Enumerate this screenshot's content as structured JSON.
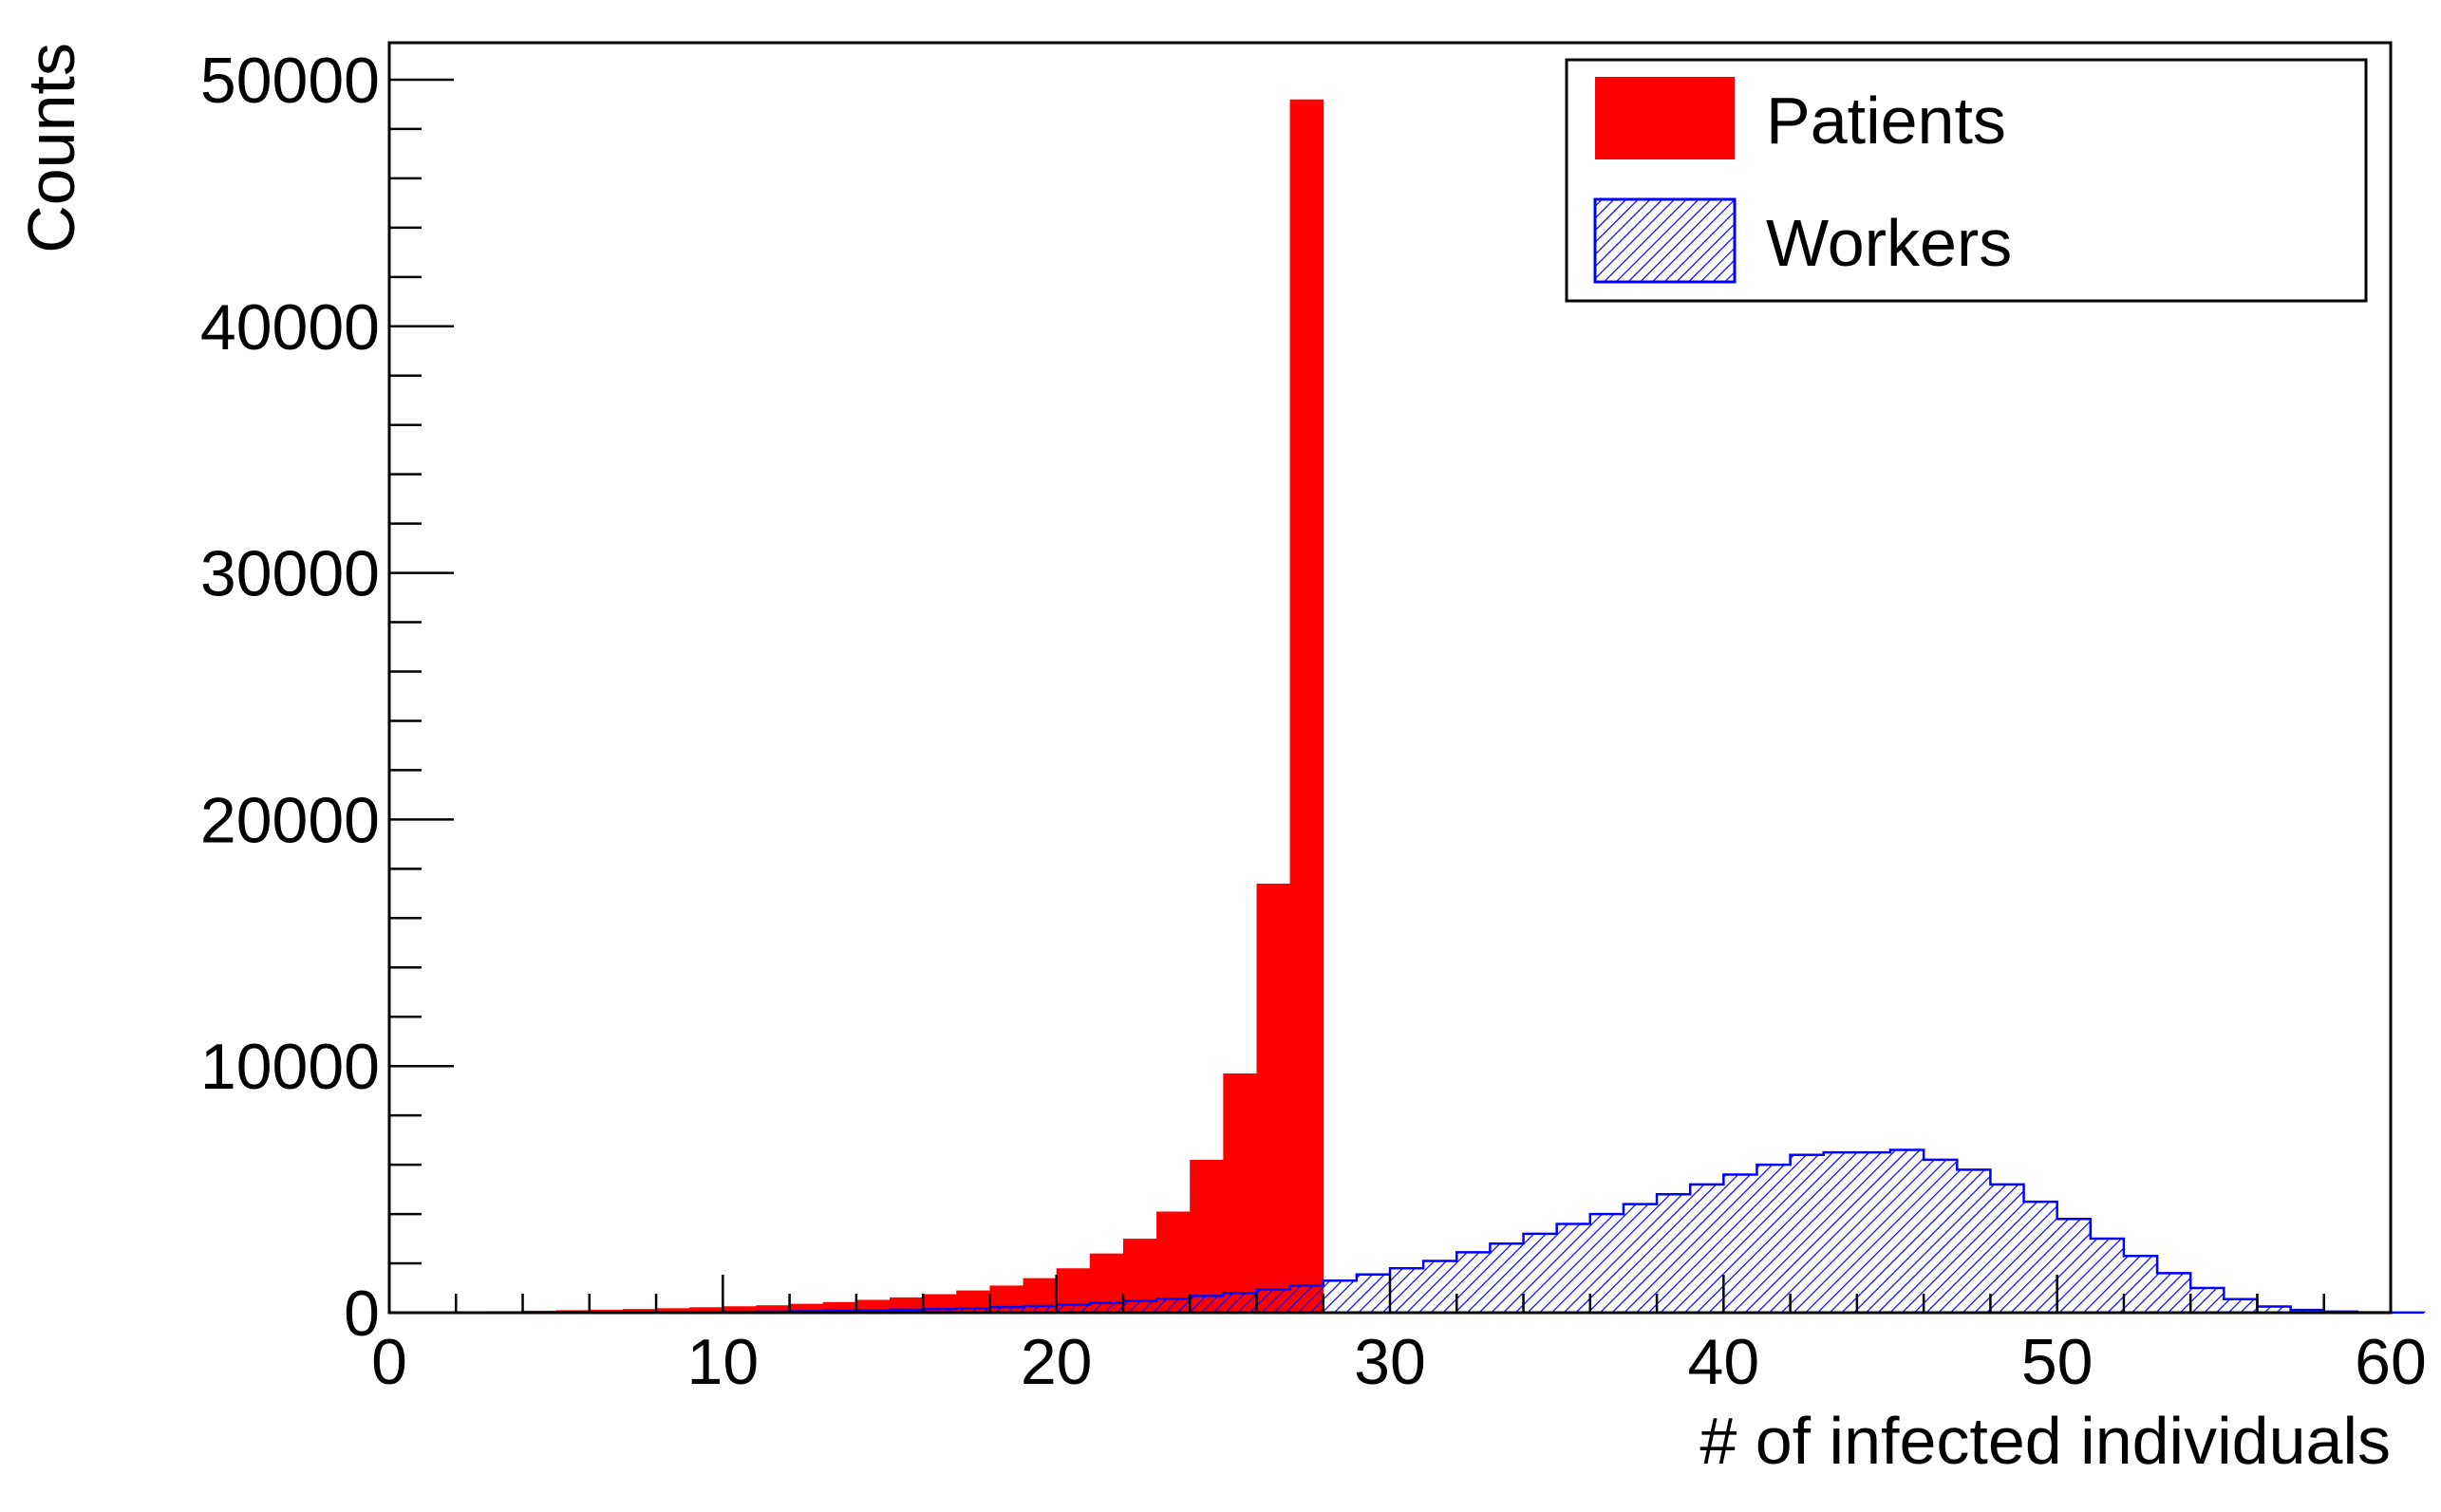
{
  "chart_data": {
    "type": "bar",
    "title": "",
    "xlabel": "# of infected individuals",
    "ylabel": "Counts",
    "xlim": [
      0,
      60
    ],
    "ylim": [
      0,
      51500
    ],
    "x_ticks": [
      "0",
      "10",
      "20",
      "30",
      "40",
      "50",
      "60"
    ],
    "y_ticks": [
      "0",
      "10000",
      "20000",
      "30000",
      "40000",
      "50000"
    ],
    "bin_width": 1,
    "legend_position": "top-right",
    "series": [
      {
        "name": "Patients",
        "style": "filled",
        "color": "#ff0000",
        "bin_start": 1,
        "values": [
          30,
          40,
          60,
          80,
          100,
          120,
          150,
          180,
          220,
          260,
          300,
          360,
          430,
          520,
          620,
          750,
          900,
          1100,
          1400,
          1800,
          2400,
          3000,
          4100,
          6200,
          9700,
          17400,
          49200
        ]
      },
      {
        "name": "Workers",
        "style": "hatched",
        "color": "#0000ff",
        "bin_start": 1,
        "values": [
          5,
          5,
          5,
          5,
          10,
          10,
          15,
          20,
          25,
          35,
          45,
          60,
          75,
          95,
          120,
          150,
          185,
          225,
          270,
          330,
          400,
          480,
          570,
          680,
          800,
          950,
          1100,
          1300,
          1550,
          1800,
          2100,
          2450,
          2800,
          3200,
          3600,
          4000,
          4400,
          4800,
          5200,
          5600,
          6000,
          6400,
          6500,
          6500,
          6600,
          6200,
          5800,
          5200,
          4500,
          3800,
          3000,
          2300,
          1600,
          1000,
          550,
          250,
          110,
          45,
          15,
          5
        ]
      }
    ]
  }
}
